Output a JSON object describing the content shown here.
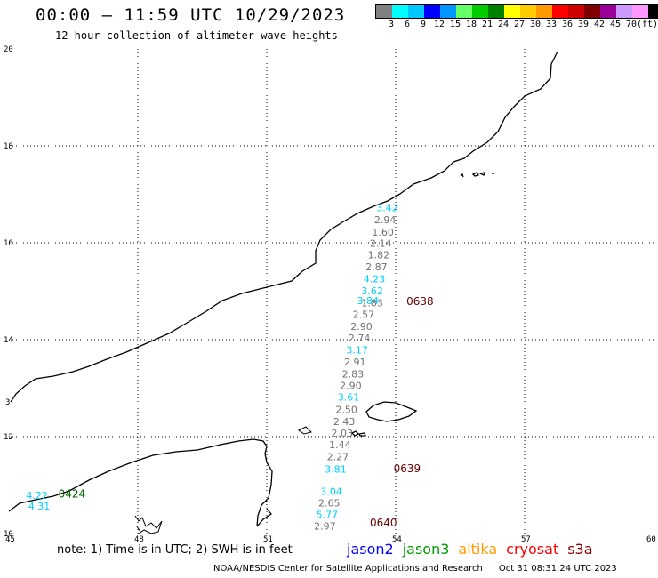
{
  "header": {
    "title": "00:00 – 11:59 UTC 10/29/2023",
    "subtitle": "12 hour collection of altimeter wave heights"
  },
  "colorbar": {
    "swatches": [
      "#808080",
      "#00ffff",
      "#00c8ff",
      "#0000ff",
      "#0096ff",
      "#66ff66",
      "#00cc00",
      "#008000",
      "#ffff00",
      "#ffcc00",
      "#ff9900",
      "#ff0000",
      "#cc0000",
      "#800000",
      "#990099",
      "#cc99ff",
      "#ff99ff",
      "#000000"
    ],
    "labels": [
      "3",
      "6",
      "9",
      "12",
      "15",
      "18",
      "21",
      "24",
      "27",
      "30",
      "33",
      "36",
      "39",
      "42",
      "45",
      "70",
      "(ft)"
    ]
  },
  "map": {
    "lon_ticks": [
      "45",
      "48",
      "51",
      "54",
      "57",
      "60"
    ],
    "lat_ticks": [
      "20",
      "18",
      "16",
      "14",
      "12",
      "10"
    ],
    "edge_label": "3"
  },
  "observations": [
    {
      "v": "3.42",
      "c": "#00d0ff",
      "lon": 53.55,
      "lat": 16.65
    },
    {
      "v": "2.94",
      "c": "#707070",
      "lon": 53.5,
      "lat": 16.4
    },
    {
      "v": "1.60",
      "c": "#707070",
      "lon": 53.45,
      "lat": 16.15
    },
    {
      "v": "2.14",
      "c": "#707070",
      "lon": 53.4,
      "lat": 15.92
    },
    {
      "v": "1.82",
      "c": "#707070",
      "lon": 53.35,
      "lat": 15.68
    },
    {
      "v": "2.87",
      "c": "#707070",
      "lon": 53.3,
      "lat": 15.43
    },
    {
      "v": "4.23",
      "c": "#00d0ff",
      "lon": 53.25,
      "lat": 15.18
    },
    {
      "v": "3.62",
      "c": "#00d0ff",
      "lon": 53.2,
      "lat": 14.94
    },
    {
      "v": "3.84",
      "c": "#00d0ff",
      "lon": 53.1,
      "lat": 14.73
    },
    {
      "v": "1.83",
      "c": "#707070",
      "lon": 53.2,
      "lat": 14.69
    },
    {
      "v": "2.57",
      "c": "#707070",
      "lon": 53.0,
      "lat": 14.45
    },
    {
      "v": "2.90",
      "c": "#707070",
      "lon": 52.95,
      "lat": 14.2
    },
    {
      "v": "2.74",
      "c": "#707070",
      "lon": 52.9,
      "lat": 13.96
    },
    {
      "v": "3.17",
      "c": "#00d0ff",
      "lon": 52.85,
      "lat": 13.72
    },
    {
      "v": "2.91",
      "c": "#707070",
      "lon": 52.8,
      "lat": 13.47
    },
    {
      "v": "2.83",
      "c": "#707070",
      "lon": 52.75,
      "lat": 13.22
    },
    {
      "v": "2.90",
      "c": "#707070",
      "lon": 52.7,
      "lat": 12.98
    },
    {
      "v": "3.61",
      "c": "#00d0ff",
      "lon": 52.65,
      "lat": 12.74
    },
    {
      "v": "2.50",
      "c": "#707070",
      "lon": 52.6,
      "lat": 12.49
    },
    {
      "v": "2.43",
      "c": "#707070",
      "lon": 52.55,
      "lat": 12.24
    },
    {
      "v": "2.03",
      "c": "#707070",
      "lon": 52.5,
      "lat": 12.0
    },
    {
      "v": "1.44",
      "c": "#707070",
      "lon": 52.45,
      "lat": 11.76
    },
    {
      "v": "2.27",
      "c": "#707070",
      "lon": 52.4,
      "lat": 11.51
    },
    {
      "v": "3.81",
      "c": "#00d0ff",
      "lon": 52.35,
      "lat": 11.26
    },
    {
      "v": "3.04",
      "c": "#00d0ff",
      "lon": 52.25,
      "lat": 10.8
    },
    {
      "v": "2.65",
      "c": "#707070",
      "lon": 52.2,
      "lat": 10.56
    },
    {
      "v": "5.77",
      "c": "#00d0ff",
      "lon": 52.15,
      "lat": 10.32
    },
    {
      "v": "2.97",
      "c": "#707070",
      "lon": 52.1,
      "lat": 10.08
    },
    {
      "v": "4.22",
      "c": "#00d0ff",
      "lon": 45.4,
      "lat": 10.72
    },
    {
      "v": "4.31",
      "c": "#00d0ff",
      "lon": 45.45,
      "lat": 10.5
    }
  ],
  "pass_times": [
    {
      "t": "0638",
      "c": "#660000",
      "lon": 54.25,
      "lat": 14.72
    },
    {
      "t": "0639",
      "c": "#660000",
      "lon": 53.95,
      "lat": 11.27
    },
    {
      "t": "0640",
      "c": "#660000",
      "lon": 53.4,
      "lat": 10.15
    },
    {
      "t": "0424",
      "c": "#006600",
      "lon": 46.15,
      "lat": 10.74
    }
  ],
  "footer": {
    "note": "note: 1) Time is in UTC; 2) SWH is in feet",
    "legend": [
      {
        "name": "jason2",
        "color": "#0000ff"
      },
      {
        "name": "jason3",
        "color": "#009900"
      },
      {
        "name": "altika",
        "color": "#ff9900"
      },
      {
        "name": "cryosat",
        "color": "#ff0000"
      },
      {
        "name": "s3a",
        "color": "#880000"
      }
    ],
    "credit": "NOAA/NESDIS Center for Satellite Applications and Research",
    "timestamp": "Oct 31 08:31:24 UTC 2023"
  }
}
